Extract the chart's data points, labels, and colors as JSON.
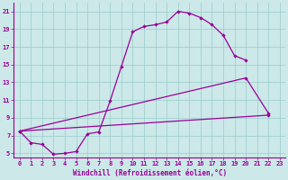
{
  "xlabel": "Windchill (Refroidissement éolien,°C)",
  "background_color": "#cce8e8",
  "grid_color": "#99cccc",
  "line_color": "#990099",
  "xlim": [
    -0.5,
    23.5
  ],
  "ylim": [
    4.5,
    22
  ],
  "xticks": [
    0,
    1,
    2,
    3,
    4,
    5,
    6,
    7,
    8,
    9,
    10,
    11,
    12,
    13,
    14,
    15,
    16,
    17,
    18,
    19,
    20,
    21,
    22,
    23
  ],
  "yticks": [
    5,
    7,
    9,
    11,
    13,
    15,
    17,
    19,
    21
  ],
  "line1_x": [
    0,
    1,
    2,
    3,
    4,
    5,
    6,
    7,
    8,
    9,
    10,
    11,
    12,
    13,
    14,
    15,
    16,
    17,
    18,
    19,
    20
  ],
  "line1_y": [
    7.5,
    6.2,
    6.0,
    4.9,
    5.0,
    5.2,
    7.2,
    7.4,
    10.9,
    14.8,
    18.7,
    19.3,
    19.5,
    19.8,
    21.0,
    20.8,
    20.3,
    19.5,
    18.3,
    16.0,
    15.5
  ],
  "line2_x": [
    0,
    20,
    22
  ],
  "line2_y": [
    7.5,
    13.5,
    9.5
  ],
  "line3_x": [
    0,
    22
  ],
  "line3_y": [
    7.5,
    9.3
  ],
  "xlabel_fontsize": 5.5,
  "tick_fontsize": 5.0
}
